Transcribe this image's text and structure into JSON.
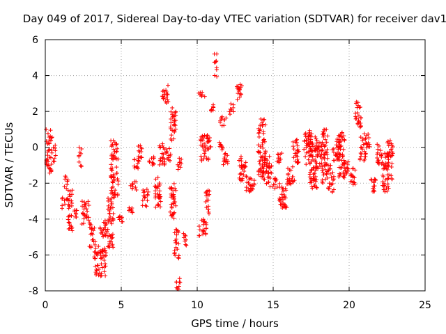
{
  "chart_data": {
    "type": "scatter",
    "title": "Day 049 of 2017, Sidereal Day-to-day VTEC variation (SDTVAR) for receiver dav1",
    "xlabel": "GPS time / hours",
    "ylabel": "SDTVAR / TECUs",
    "xlim": [
      0,
      25
    ],
    "ylim": [
      -8,
      6
    ],
    "x_ticks": [
      0,
      5,
      10,
      15,
      20,
      25
    ],
    "y_ticks": [
      -8,
      -6,
      -4,
      -2,
      0,
      2,
      4,
      6
    ],
    "grid": true,
    "marker": "+",
    "color": "#ff0000",
    "series": [
      {
        "name": "SDTVAR",
        "clusters": [
          {
            "x": [
              0.05,
              0.45
            ],
            "y": [
              -1.5,
              1.0
            ]
          },
          {
            "x": [
              0.5,
              0.7
            ],
            "y": [
              -0.8,
              0.2
            ]
          },
          {
            "x": [
              1.1,
              1.6
            ],
            "y": [
              -3.4,
              -2.8
            ]
          },
          {
            "x": [
              1.2,
              1.5
            ],
            "y": [
              -2.3,
              -1.6
            ]
          },
          {
            "x": [
              1.5,
              1.8
            ],
            "y": [
              -4.7,
              -2.3
            ]
          },
          {
            "x": [
              1.9,
              2.1
            ],
            "y": [
              -3.9,
              -3.5
            ]
          },
          {
            "x": [
              2.2,
              2.4
            ],
            "y": [
              -1.1,
              0.1
            ]
          },
          {
            "x": [
              2.4,
              2.9
            ],
            "y": [
              -4.3,
              -3.0
            ]
          },
          {
            "x": [
              2.9,
              3.3
            ],
            "y": [
              -5.6,
              -4.2
            ]
          },
          {
            "x": [
              3.2,
              3.5
            ],
            "y": [
              -7.2,
              -5.5
            ]
          },
          {
            "x": [
              3.5,
              4.0
            ],
            "y": [
              -7.2,
              -5.6
            ]
          },
          {
            "x": [
              3.6,
              4.1
            ],
            "y": [
              -5.0,
              -4.0
            ]
          },
          {
            "x": [
              4.1,
              4.5
            ],
            "y": [
              -5.6,
              -2.8
            ]
          },
          {
            "x": [
              4.3,
              4.8
            ],
            "y": [
              -2.8,
              0.4
            ]
          },
          {
            "x": [
              4.7,
              5.1
            ],
            "y": [
              -4.3,
              -3.8
            ]
          },
          {
            "x": [
              5.5,
              5.8
            ],
            "y": [
              -3.7,
              -3.3
            ]
          },
          {
            "x": [
              5.6,
              6.0
            ],
            "y": [
              -2.4,
              -1.8
            ]
          },
          {
            "x": [
              5.8,
              6.2
            ],
            "y": [
              -1.2,
              -0.6
            ]
          },
          {
            "x": [
              6.1,
              6.5
            ],
            "y": [
              -0.8,
              0.1
            ]
          },
          {
            "x": [
              6.4,
              6.8
            ],
            "y": [
              -3.3,
              -2.3
            ]
          },
          {
            "x": [
              6.8,
              7.2
            ],
            "y": [
              -1.0,
              -0.3
            ]
          },
          {
            "x": [
              7.2,
              7.6
            ],
            "y": [
              -3.4,
              -1.6
            ]
          },
          {
            "x": [
              7.5,
              7.9
            ],
            "y": [
              -1.0,
              0.3
            ]
          },
          {
            "x": [
              7.7,
              8.1
            ],
            "y": [
              2.4,
              3.5
            ]
          },
          {
            "x": [
              7.9,
              8.3
            ],
            "y": [
              -0.8,
              0.0
            ]
          },
          {
            "x": [
              8.2,
              8.6
            ],
            "y": [
              0.2,
              2.2
            ]
          },
          {
            "x": [
              8.2,
              8.6
            ],
            "y": [
              -4.2,
              -2.0
            ]
          },
          {
            "x": [
              8.5,
              8.8
            ],
            "y": [
              -6.3,
              -4.5
            ]
          },
          {
            "x": [
              8.6,
              8.9
            ],
            "y": [
              -8.0,
              -7.2
            ]
          },
          {
            "x": [
              8.7,
              9.0
            ],
            "y": [
              -1.4,
              -0.6
            ]
          },
          {
            "x": [
              9.1,
              9.3
            ],
            "y": [
              -5.7,
              -4.8
            ]
          },
          {
            "x": [
              10.1,
              10.5
            ],
            "y": [
              2.8,
              3.1
            ]
          },
          {
            "x": [
              10.1,
              10.6
            ],
            "y": [
              -5.0,
              -3.9
            ]
          },
          {
            "x": [
              10.2,
              10.9
            ],
            "y": [
              -0.8,
              0.7
            ]
          },
          {
            "x": [
              10.5,
              10.8
            ],
            "y": [
              -3.8,
              -2.3
            ]
          },
          {
            "x": [
              10.9,
              11.1
            ],
            "y": [
              1.9,
              2.4
            ]
          },
          {
            "x": [
              11.1,
              11.3
            ],
            "y": [
              3.9,
              5.2
            ]
          },
          {
            "x": [
              11.3,
              11.7
            ],
            "y": [
              -0.2,
              0.3
            ]
          },
          {
            "x": [
              11.5,
              11.9
            ],
            "y": [
              1.2,
              1.8
            ]
          },
          {
            "x": [
              11.7,
              12.1
            ],
            "y": [
              -1.0,
              -0.1
            ]
          },
          {
            "x": [
              12.1,
              12.4
            ],
            "y": [
              1.8,
              2.5
            ]
          },
          {
            "x": [
              12.6,
              13.0
            ],
            "y": [
              2.6,
              3.6
            ]
          },
          {
            "x": [
              12.7,
              13.2
            ],
            "y": [
              -1.9,
              -0.5
            ]
          },
          {
            "x": [
              13.2,
              13.6
            ],
            "y": [
              -2.5,
              -1.5
            ]
          },
          {
            "x": [
              13.5,
              13.8
            ],
            "y": [
              -2.4,
              -1.8
            ]
          },
          {
            "x": [
              14.0,
              14.5
            ],
            "y": [
              -1.8,
              1.6
            ]
          },
          {
            "x": [
              14.5,
              14.9
            ],
            "y": [
              -2.2,
              -0.5
            ]
          },
          {
            "x": [
              14.9,
              15.3
            ],
            "y": [
              -2.3,
              -1.7
            ]
          },
          {
            "x": [
              15.2,
              15.6
            ],
            "y": [
              -0.9,
              -0.2
            ]
          },
          {
            "x": [
              15.4,
              15.9
            ],
            "y": [
              -3.5,
              -2.0
            ]
          },
          {
            "x": [
              15.9,
              16.4
            ],
            "y": [
              -2.1,
              -1.0
            ]
          },
          {
            "x": [
              16.3,
              16.7
            ],
            "y": [
              -1.0,
              0.5
            ]
          },
          {
            "x": [
              17.0,
              17.5
            ],
            "y": [
              -1.0,
              1.0
            ]
          },
          {
            "x": [
              17.4,
              17.9
            ],
            "y": [
              -2.3,
              0.8
            ]
          },
          {
            "x": [
              17.8,
              18.2
            ],
            "y": [
              -1.3,
              0.3
            ]
          },
          {
            "x": [
              18.2,
              18.6
            ],
            "y": [
              -2.0,
              1.0
            ]
          },
          {
            "x": [
              18.6,
              19.0
            ],
            "y": [
              -2.5,
              -1.0
            ]
          },
          {
            "x": [
              18.9,
              19.4
            ],
            "y": [
              -0.8,
              0.5
            ]
          },
          {
            "x": [
              19.3,
              19.7
            ],
            "y": [
              -1.8,
              0.9
            ]
          },
          {
            "x": [
              19.6,
              20.0
            ],
            "y": [
              -2.0,
              -0.8
            ]
          },
          {
            "x": [
              20.0,
              20.4
            ],
            "y": [
              -2.1,
              -1.1
            ]
          },
          {
            "x": [
              20.4,
              20.8
            ],
            "y": [
              1.1,
              2.6
            ]
          },
          {
            "x": [
              20.7,
              21.1
            ],
            "y": [
              -0.8,
              0.6
            ]
          },
          {
            "x": [
              21.0,
              21.4
            ],
            "y": [
              -0.1,
              0.8
            ]
          },
          {
            "x": [
              21.4,
              21.8
            ],
            "y": [
              -2.5,
              -1.6
            ]
          },
          {
            "x": [
              21.8,
              22.2
            ],
            "y": [
              -1.0,
              0.2
            ]
          },
          {
            "x": [
              22.2,
              22.6
            ],
            "y": [
              -2.5,
              -0.3
            ]
          },
          {
            "x": [
              22.5,
              22.9
            ],
            "y": [
              -1.8,
              0.4
            ]
          }
        ]
      }
    ]
  }
}
